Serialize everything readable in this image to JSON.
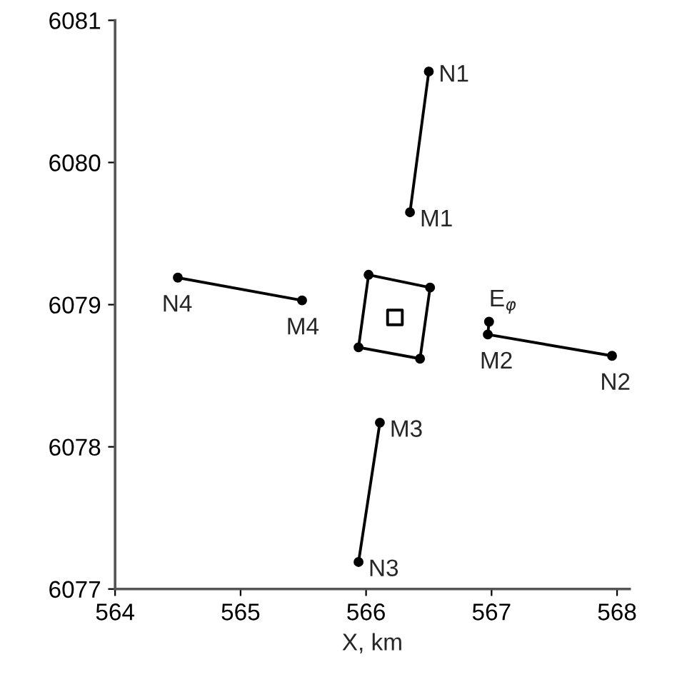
{
  "chart_data": {
    "type": "line",
    "xlabel": "X, km",
    "xlim": [
      564,
      568.1
    ],
    "ylim": [
      6077,
      6081
    ],
    "xticks": [
      564,
      565,
      566,
      567,
      568
    ],
    "yticks": [
      6077,
      6078,
      6079,
      6080,
      6081
    ],
    "grid": false,
    "legend": false,
    "marker": "circle",
    "line_style": "solid",
    "series": [
      {
        "color": "#000000",
        "x": [
          566.5,
          566.35
        ],
        "values": [
          6080.64,
          6079.65
        ]
      },
      {
        "color": "#000000",
        "x": [
          564.5,
          565.49
        ],
        "values": [
          6079.19,
          6079.03
        ]
      },
      {
        "color": "#000000",
        "x": [
          566.98,
          566.97,
          567.96
        ],
        "values": [
          6078.88,
          6078.79,
          6078.64
        ]
      },
      {
        "color": "#000000",
        "x": [
          566.11,
          565.94
        ],
        "values": [
          6078.17,
          6077.19
        ]
      },
      {
        "color": "#000000",
        "x": [
          566.02,
          566.51,
          566.43,
          565.94
        ],
        "values": [
          6079.21,
          6079.12,
          6078.62,
          6078.7
        ]
      },
      {
        "type": "scatter",
        "color": "#000000",
        "marker": "square",
        "x": [
          566.23
        ],
        "values": [
          6078.91
        ]
      }
    ],
    "annotations": [
      {
        "text": "N1",
        "x": 566.5,
        "y": 6080.64
      },
      {
        "text": "M1",
        "x": 566.35,
        "y": 6079.65
      },
      {
        "text": "N4",
        "x": 564.5,
        "y": 6079.19
      },
      {
        "text": "M4",
        "x": 565.49,
        "y": 6079.03
      },
      {
        "text": "E$_{φ}$",
        "x": 566.98,
        "y": 6078.88
      },
      {
        "text": "M2",
        "x": 566.97,
        "y": 6078.79
      },
      {
        "text": "N2",
        "x": 567.96,
        "y": 6078.64
      },
      {
        "text": "M3",
        "x": 566.11,
        "y": 6078.17
      },
      {
        "text": "N3",
        "x": 565.94,
        "y": 6077.19
      }
    ]
  }
}
